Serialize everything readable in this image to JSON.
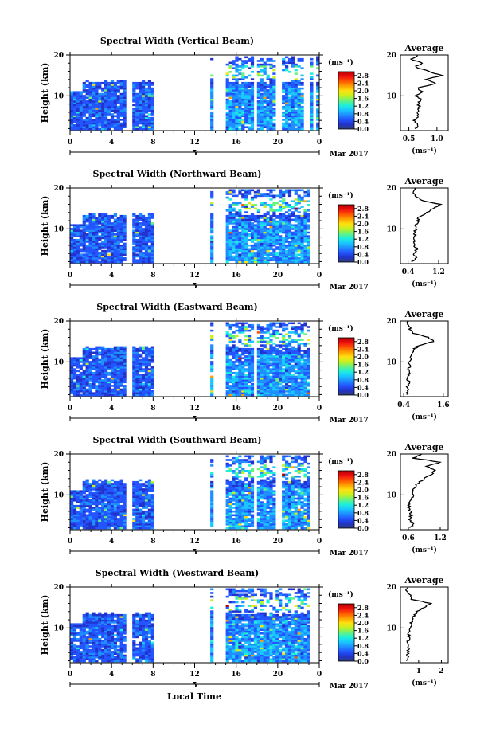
{
  "figure": {
    "xlabel": "Local Time",
    "date_label": "Mar 2017",
    "day_marker": "5"
  },
  "colorbar": {
    "unit": "(ms⁻¹)",
    "ticks": [
      "2.8",
      "2.4",
      "2.0",
      "1.6",
      "1.2",
      "0.8",
      "0.4",
      "0.0"
    ],
    "range": [
      0,
      3.0
    ],
    "colors": [
      "#2c3e7a",
      "#2233cc",
      "#2255ff",
      "#1f8fff",
      "#19c8ff",
      "#20f0d8",
      "#6af27a",
      "#c8f020",
      "#ffe010",
      "#ffa000",
      "#ff5500",
      "#f01010",
      "#b00000"
    ]
  },
  "chart_data": [
    {
      "type": "heatmap",
      "title": "Spectral Width (Vertical Beam)",
      "ylabel": "Height (km)",
      "x_ticks": [
        "0",
        "4",
        "8",
        "12",
        "16",
        "20",
        "0"
      ],
      "xlim": [
        0,
        24
      ],
      "y_ticks": [
        "20",
        "10"
      ],
      "ylim": [
        1.5,
        20
      ],
      "data_gaps_hours": [
        [
          5.3,
          6.0
        ],
        [
          8.2,
          13.6
        ],
        [
          13.8,
          14.9
        ],
        [
          17.8,
          18.1
        ],
        [
          19.8,
          20.3
        ],
        [
          22.6,
          23.0
        ],
        [
          23.4,
          23.7
        ]
      ],
      "average_profile": {
        "title": "Average",
        "xlabel": "(ms⁻¹)",
        "x_ticks": [
          "0.5",
          "1.0"
        ],
        "xlim": [
          0.35,
          1.2
        ],
        "y_ticks": [
          "20",
          "10"
        ],
        "heights": [
          2,
          3,
          4,
          5,
          6,
          7,
          8,
          9,
          10,
          11,
          12,
          13,
          14,
          15,
          16,
          17,
          18,
          19,
          20
        ],
        "values": [
          0.62,
          0.66,
          0.6,
          0.68,
          0.63,
          0.7,
          0.66,
          0.72,
          0.62,
          0.74,
          0.65,
          0.98,
          0.8,
          1.08,
          0.85,
          0.62,
          0.72,
          0.55,
          0.65
        ]
      }
    },
    {
      "type": "heatmap",
      "title": "Spectral Width (Northward Beam)",
      "ylabel": "Height (km)",
      "x_ticks": [
        "0",
        "4",
        "8",
        "12",
        "16",
        "20",
        "0"
      ],
      "xlim": [
        0,
        24
      ],
      "y_ticks": [
        "20",
        "10"
      ],
      "ylim": [
        1.5,
        20
      ],
      "data_gaps_hours": [
        [
          5.3,
          6.0
        ],
        [
          8.2,
          13.6
        ],
        [
          13.8,
          14.9
        ],
        [
          23.0,
          24.0
        ]
      ],
      "average_profile": {
        "title": "Average",
        "xlabel": "(ms⁻¹)",
        "x_ticks": [
          "0.4",
          "1.2"
        ],
        "xlim": [
          0.2,
          1.45
        ],
        "y_ticks": [
          "20",
          "10"
        ],
        "heights": [
          2,
          3,
          4,
          5,
          6,
          7,
          8,
          9,
          10,
          11,
          12,
          13,
          14,
          15,
          16,
          17,
          18,
          19,
          20
        ],
        "values": [
          0.52,
          0.6,
          0.55,
          0.62,
          0.58,
          0.55,
          0.56,
          0.58,
          0.6,
          0.62,
          0.66,
          0.7,
          0.9,
          1.05,
          1.25,
          0.75,
          0.62,
          0.5,
          0.58
        ]
      }
    },
    {
      "type": "heatmap",
      "title": "Spectral Width (Eastward Beam)",
      "ylabel": "Height (km)",
      "x_ticks": [
        "0",
        "4",
        "8",
        "12",
        "16",
        "20",
        "0"
      ],
      "xlim": [
        0,
        24
      ],
      "y_ticks": [
        "20",
        "10"
      ],
      "ylim": [
        1.5,
        20
      ],
      "data_gaps_hours": [
        [
          5.3,
          6.0
        ],
        [
          8.2,
          13.6
        ],
        [
          13.8,
          14.9
        ],
        [
          17.8,
          18.1
        ],
        [
          23.0,
          24.0
        ]
      ],
      "average_profile": {
        "title": "Average",
        "xlabel": "(ms⁻¹)",
        "x_ticks": [
          "0.4",
          "1.6"
        ],
        "xlim": [
          0.3,
          1.75
        ],
        "y_ticks": [
          "20",
          "10"
        ],
        "heights": [
          2,
          3,
          4,
          5,
          6,
          7,
          8,
          9,
          10,
          11,
          12,
          13,
          14,
          15,
          16,
          17,
          18,
          19,
          20
        ],
        "values": [
          0.5,
          0.52,
          0.5,
          0.55,
          0.52,
          0.55,
          0.54,
          0.58,
          0.57,
          0.6,
          0.62,
          0.7,
          0.85,
          1.3,
          1.15,
          0.7,
          0.6,
          0.52,
          0.55
        ]
      }
    },
    {
      "type": "heatmap",
      "title": "Spectral Width (Southward Beam)",
      "ylabel": "Height (km)",
      "x_ticks": [
        "0",
        "4",
        "8",
        "12",
        "16",
        "20",
        "0"
      ],
      "xlim": [
        0,
        24
      ],
      "y_ticks": [
        "20",
        "10"
      ],
      "ylim": [
        1.5,
        20
      ],
      "data_gaps_hours": [
        [
          5.3,
          6.0
        ],
        [
          8.2,
          13.6
        ],
        [
          13.8,
          14.9
        ],
        [
          17.8,
          18.1
        ],
        [
          19.8,
          20.3
        ],
        [
          23.0,
          24.0
        ]
      ],
      "average_profile": {
        "title": "Average",
        "xlabel": "(ms⁻¹)",
        "x_ticks": [
          "0.6",
          "1.2"
        ],
        "xlim": [
          0.45,
          1.35
        ],
        "y_ticks": [
          "20",
          "10"
        ],
        "heights": [
          2,
          3,
          4,
          5,
          6,
          7,
          8,
          9,
          10,
          11,
          12,
          13,
          14,
          15,
          16,
          17,
          18,
          19,
          20
        ],
        "values": [
          0.62,
          0.7,
          0.6,
          0.66,
          0.64,
          0.6,
          0.62,
          0.66,
          0.7,
          0.68,
          0.72,
          0.8,
          0.9,
          1.05,
          1.1,
          0.95,
          1.2,
          0.7,
          0.85
        ]
      }
    },
    {
      "type": "heatmap",
      "title": "Spectral Width (Westward Beam)",
      "ylabel": "Height (km)",
      "x_ticks": [
        "0",
        "4",
        "8",
        "12",
        "16",
        "20",
        "0"
      ],
      "xlim": [
        0,
        24
      ],
      "y_ticks": [
        "20",
        "10"
      ],
      "ylim": [
        1.5,
        20
      ],
      "data_gaps_hours": [
        [
          5.3,
          6.0
        ],
        [
          8.2,
          13.6
        ],
        [
          13.8,
          14.9
        ],
        [
          23.0,
          24.0
        ]
      ],
      "average_profile": {
        "title": "Average",
        "xlabel": "(ms⁻¹)",
        "x_ticks": [
          "1",
          "2"
        ],
        "xlim": [
          0.2,
          2.3
        ],
        "y_ticks": [
          "20",
          "10"
        ],
        "heights": [
          2,
          3,
          4,
          5,
          6,
          7,
          8,
          9,
          10,
          11,
          12,
          13,
          14,
          15,
          16,
          17,
          18,
          19,
          20
        ],
        "values": [
          0.45,
          0.55,
          0.5,
          0.58,
          0.52,
          0.55,
          0.56,
          0.6,
          0.62,
          0.66,
          0.7,
          0.82,
          0.95,
          1.2,
          1.55,
          0.7,
          0.6,
          0.45,
          0.52
        ]
      }
    }
  ]
}
